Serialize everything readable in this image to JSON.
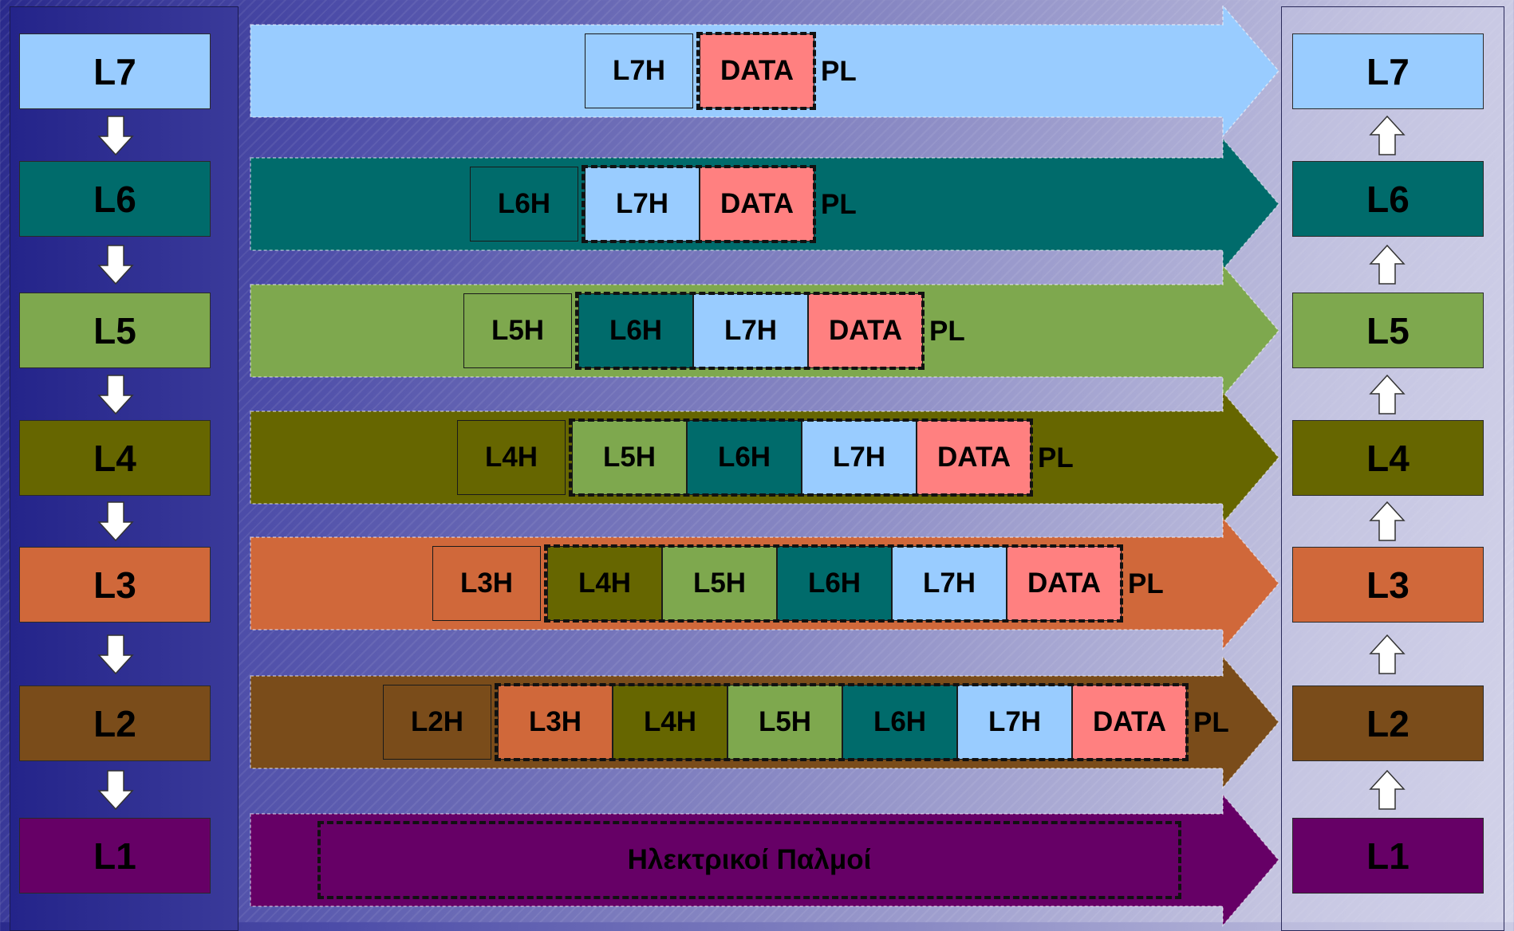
{
  "colors": {
    "L7": "#99ccff",
    "L6": "#006b6b",
    "L5": "#7ea84e",
    "L4": "#666600",
    "L3": "#d0683a",
    "L2": "#7a4c1a",
    "L1": "#660066",
    "DATA": "#ff8080"
  },
  "stack_labels": [
    "L7",
    "L6",
    "L5",
    "L4",
    "L3",
    "L2",
    "L1"
  ],
  "arrows": {
    "left_direction": "down",
    "right_direction": "up"
  },
  "bands": [
    {
      "layer": "L7",
      "cells": [
        "L7H",
        "DATA"
      ],
      "trailer": "PL"
    },
    {
      "layer": "L6",
      "cells": [
        "L6H",
        "L7H",
        "DATA"
      ],
      "trailer": "PL"
    },
    {
      "layer": "L5",
      "cells": [
        "L5H",
        "L6H",
        "L7H",
        "DATA"
      ],
      "trailer": "PL"
    },
    {
      "layer": "L4",
      "cells": [
        "L4H",
        "L5H",
        "L6H",
        "L7H",
        "DATA"
      ],
      "trailer": "PL"
    },
    {
      "layer": "L3",
      "cells": [
        "L3H",
        "L4H",
        "L5H",
        "L6H",
        "L7H",
        "DATA"
      ],
      "trailer": "PL"
    },
    {
      "layer": "L2",
      "cells": [
        "L2H",
        "L3H",
        "L4H",
        "L5H",
        "L6H",
        "L7H",
        "DATA"
      ],
      "trailer": "PL"
    },
    {
      "layer": "L1",
      "cells": [],
      "trailer": "",
      "signal_text": "Ηλεκτρικοί Παλμοί"
    }
  ]
}
